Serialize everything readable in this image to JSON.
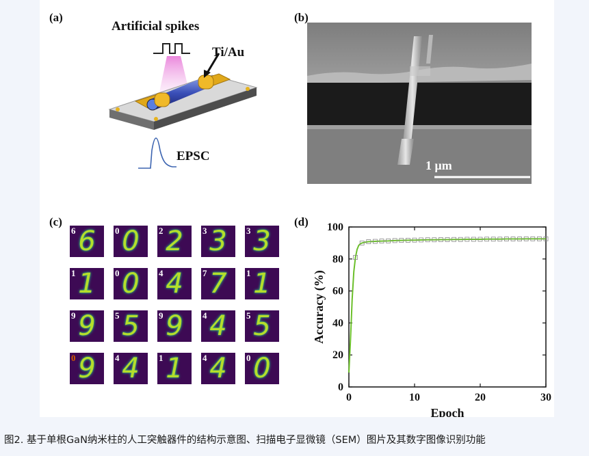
{
  "panels": {
    "a": {
      "label": "(a)",
      "spikes_label": "Artificial spikes",
      "electrode_label": "Ti/Au",
      "output_label": "EPSC"
    },
    "b": {
      "label": "(b)",
      "scale_bar": "1 μm"
    },
    "c": {
      "label": "(c)",
      "tiles": [
        {
          "label": "6",
          "digit": "6",
          "wrong": false
        },
        {
          "label": "0",
          "digit": "0",
          "wrong": false
        },
        {
          "label": "2",
          "digit": "2",
          "wrong": false
        },
        {
          "label": "3",
          "digit": "3",
          "wrong": false
        },
        {
          "label": "3",
          "digit": "3",
          "wrong": false
        },
        {
          "label": "1",
          "digit": "1",
          "wrong": false
        },
        {
          "label": "0",
          "digit": "0",
          "wrong": false
        },
        {
          "label": "4",
          "digit": "4",
          "wrong": false
        },
        {
          "label": "7",
          "digit": "7",
          "wrong": false
        },
        {
          "label": "1",
          "digit": "1",
          "wrong": false
        },
        {
          "label": "9",
          "digit": "9",
          "wrong": false
        },
        {
          "label": "5",
          "digit": "5",
          "wrong": false
        },
        {
          "label": "9",
          "digit": "9",
          "wrong": false
        },
        {
          "label": "4",
          "digit": "4",
          "wrong": false
        },
        {
          "label": "5",
          "digit": "5",
          "wrong": false
        },
        {
          "label": "0",
          "digit": "9",
          "wrong": true
        },
        {
          "label": "4",
          "digit": "4",
          "wrong": false
        },
        {
          "label": "1",
          "digit": "1",
          "wrong": false
        },
        {
          "label": "4",
          "digit": "4",
          "wrong": false
        },
        {
          "label": "0",
          "digit": "0",
          "wrong": false
        }
      ]
    },
    "d": {
      "label": "(d)"
    }
  },
  "chart_data": {
    "type": "line",
    "xlabel": "Epoch",
    "ylabel": "Accuracy (%)",
    "xlim": [
      0,
      30
    ],
    "ylim": [
      0,
      100
    ],
    "xticks": [
      0,
      10,
      20,
      30
    ],
    "yticks": [
      0,
      20,
      40,
      60,
      80,
      100
    ],
    "grid": false,
    "series": [
      {
        "color": "#6bbf2a",
        "marker": "open-square",
        "x": [
          0,
          0.25,
          0.5,
          0.75,
          1,
          1.25,
          1.5,
          1.75,
          2,
          2.5,
          3,
          4,
          5,
          6,
          7,
          8,
          9,
          10,
          11,
          12,
          13,
          14,
          15,
          16,
          17,
          18,
          19,
          20,
          21,
          22,
          23,
          24,
          25,
          26,
          27,
          28,
          29,
          30
        ],
        "values": [
          9,
          30,
          55,
          72,
          81,
          86,
          88.5,
          89.5,
          90,
          90.5,
          90.8,
          91,
          91.2,
          91.3,
          91.5,
          91.6,
          91.7,
          91.8,
          91.9,
          92,
          92,
          92.1,
          92.1,
          92.2,
          92.2,
          92.3,
          92.3,
          92.3,
          92.4,
          92.4,
          92.4,
          92.5,
          92.5,
          92.5,
          92.6,
          92.6,
          92.6,
          92.6
        ]
      }
    ]
  },
  "caption": "图2. 基于单根GaN纳米柱的人工突触器件的结构示意图、扫描电子显微镜（SEM）图片及其数字图像识别功能"
}
